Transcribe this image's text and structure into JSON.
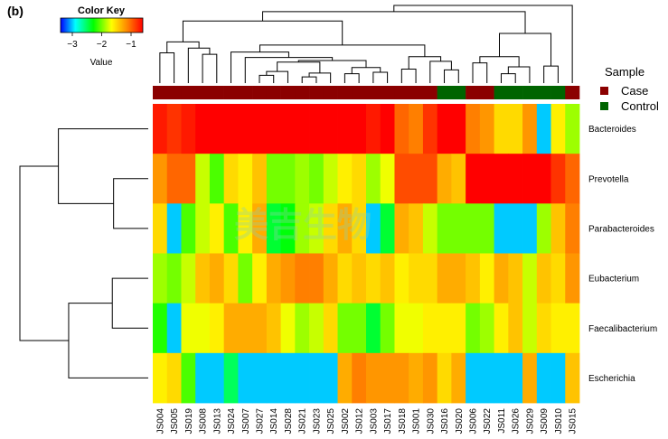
{
  "panel_label": "(b)",
  "color_key": {
    "title": "Color Key",
    "axis_label": "Value",
    "ticks": [
      "−3",
      "−2",
      "−1"
    ],
    "tick_values": [
      -3,
      -2,
      -1
    ],
    "range": [
      -3.4,
      -0.6
    ]
  },
  "legend": {
    "title": "Sample",
    "items": [
      {
        "label": "Case",
        "color": "#8B0000"
      },
      {
        "label": "Control",
        "color": "#006400"
      }
    ]
  },
  "watermark": "美吉生物",
  "chart_data": {
    "type": "heatmap",
    "columns": [
      "JS004",
      "JS005",
      "JS019",
      "JS008",
      "JS013",
      "JS024",
      "JS007",
      "JS027",
      "JS014",
      "JS028",
      "JS021",
      "JS023",
      "JS025",
      "JS002",
      "JS012",
      "JS003",
      "JS017",
      "JS018",
      "JS001",
      "JS030",
      "JS016",
      "JS020",
      "JS006",
      "JS022",
      "JS011",
      "JS026",
      "JS029",
      "JS009",
      "JS010",
      "JS015"
    ],
    "groups": [
      "Case",
      "Case",
      "Case",
      "Case",
      "Case",
      "Case",
      "Case",
      "Case",
      "Case",
      "Case",
      "Case",
      "Case",
      "Case",
      "Case",
      "Case",
      "Case",
      "Case",
      "Case",
      "Case",
      "Case",
      "Control",
      "Control",
      "Case",
      "Case",
      "Control",
      "Control",
      "Control",
      "Control",
      "Control",
      "Case"
    ],
    "rows": [
      "Bacteroides",
      "Prevotella",
      "Parabacteroides",
      "Eubacterium",
      "Faecalibacterium",
      "Escherichia"
    ],
    "values": [
      [
        -0.7,
        -0.8,
        -0.7,
        -0.6,
        -0.6,
        -0.6,
        -0.6,
        -0.6,
        -0.6,
        -0.6,
        -0.6,
        -0.6,
        -0.6,
        -0.6,
        -0.6,
        -0.7,
        -0.6,
        -1.0,
        -1.1,
        -0.8,
        -0.6,
        -0.6,
        -1.1,
        -1.2,
        -1.5,
        -1.5,
        -1.2,
        -3.0,
        -1.6,
        -1.9
      ],
      [
        -1.2,
        -1.0,
        -1.0,
        -1.8,
        -2.1,
        -1.5,
        -1.6,
        -1.4,
        -2.0,
        -2.0,
        -1.9,
        -2.0,
        -1.8,
        -1.6,
        -1.5,
        -1.9,
        -1.7,
        -0.9,
        -0.9,
        -0.9,
        -1.3,
        -1.4,
        -0.6,
        -0.6,
        -0.6,
        -0.6,
        -0.6,
        -0.6,
        -0.8,
        -1.0
      ],
      [
        -1.5,
        -3.0,
        -2.1,
        -1.8,
        -1.6,
        -2.1,
        -1.6,
        -1.3,
        -2.4,
        -2.3,
        -1.9,
        -1.8,
        -1.5,
        -1.3,
        -1.5,
        -3.0,
        -2.4,
        -1.3,
        -1.4,
        -1.8,
        -2.0,
        -2.0,
        -2.0,
        -2.0,
        -3.0,
        -3.0,
        -3.0,
        -1.9,
        -1.4,
        -1.1
      ],
      [
        -1.9,
        -2.0,
        -1.8,
        -1.4,
        -1.3,
        -1.5,
        -2.0,
        -1.6,
        -1.3,
        -1.2,
        -1.1,
        -1.1,
        -1.3,
        -1.5,
        -1.4,
        -1.5,
        -1.4,
        -1.6,
        -1.5,
        -1.5,
        -1.3,
        -1.3,
        -1.4,
        -1.6,
        -1.3,
        -1.4,
        -1.8,
        -1.4,
        -1.5,
        -1.2
      ],
      [
        -2.2,
        -3.0,
        -1.7,
        -1.7,
        -1.6,
        -1.3,
        -1.3,
        -1.3,
        -1.4,
        -1.7,
        -1.9,
        -1.8,
        -1.5,
        -2.0,
        -2.0,
        -2.4,
        -2.0,
        -1.7,
        -1.7,
        -1.6,
        -1.6,
        -1.6,
        -2.0,
        -1.9,
        -1.6,
        -1.4,
        -1.8,
        -1.5,
        -1.6,
        -1.6
      ],
      [
        -1.6,
        -1.5,
        -2.1,
        -3.0,
        -3.0,
        -2.5,
        -3.0,
        -3.0,
        -3.0,
        -3.0,
        -3.0,
        -3.0,
        -3.0,
        -1.3,
        -1.1,
        -1.2,
        -1.2,
        -1.2,
        -1.3,
        -1.2,
        -1.5,
        -1.3,
        -3.0,
        -3.0,
        -3.0,
        -3.0,
        -1.3,
        -3.0,
        -3.0,
        -1.4
      ]
    ]
  }
}
